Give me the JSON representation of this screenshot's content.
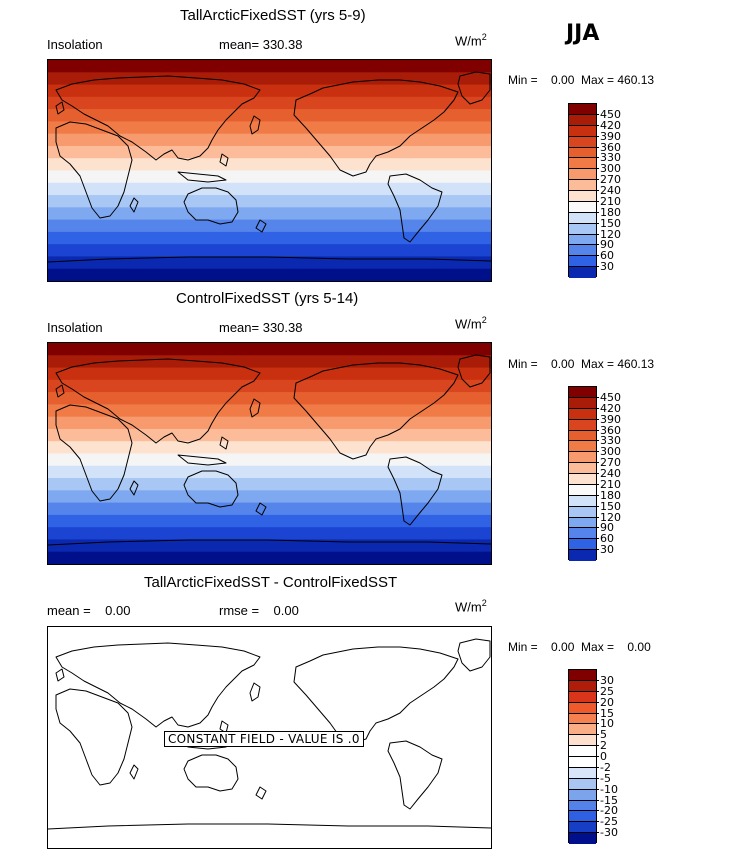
{
  "season": "JJA",
  "unit": {
    "base": "W/m",
    "sup": "2"
  },
  "panels": [
    {
      "title": "TallArcticFixedSST (yrs 5-9)",
      "left_label": "Insolation",
      "mid_label": "mean= 330.38",
      "minmax": "Min =    0.00  Max = 460.13",
      "palette": "warm",
      "levels": [
        "450",
        "420",
        "390",
        "360",
        "330",
        "300",
        "270",
        "240",
        "210",
        "180",
        "150",
        "120",
        "90",
        "60",
        "30"
      ]
    },
    {
      "title": "ControlFixedSST (yrs 5-14)",
      "left_label": "Insolation",
      "mid_label": "mean= 330.38",
      "minmax": "Min =    0.00  Max = 460.13",
      "palette": "warm",
      "levels": [
        "450",
        "420",
        "390",
        "360",
        "330",
        "300",
        "270",
        "240",
        "210",
        "180",
        "150",
        "120",
        "90",
        "60",
        "30"
      ]
    },
    {
      "title": "TallArcticFixedSST - ControlFixedSST",
      "left_label": "mean =    0.00",
      "mid_label": "rmse =    0.00",
      "minmax": "Min =    0.00  Max =    0.00",
      "palette": "diff",
      "constant_label": "CONSTANT FIELD - VALUE IS .0",
      "levels": [
        "30",
        "25",
        "20",
        "15",
        "10",
        "5",
        "2",
        "0",
        "-2",
        "-5",
        "-10",
        "-15",
        "-20",
        "-25",
        "-30"
      ]
    }
  ],
  "colors": {
    "warm": [
      "#800000",
      "#a81c08",
      "#c8300f",
      "#d8451e",
      "#e6602f",
      "#f07b47",
      "#f79a6d",
      "#fcbc9a",
      "#fde2cf",
      "#f5f5f5",
      "#d2e2f8",
      "#a8c7f4",
      "#7ea8ef",
      "#5585ea",
      "#2f62e4",
      "#1a44d1",
      "#0b28b0",
      "#000f8a"
    ],
    "diff_bar": [
      "#800000",
      "#b01c0a",
      "#d8351a",
      "#ef5a2c",
      "#f78050",
      "#fbae86",
      "#fde0cd",
      "#ffffff",
      "#d9e6f9",
      "#a9c6f3",
      "#7ba4ed",
      "#5482e8",
      "#2f5fe3",
      "#173fc5",
      "#00108c"
    ]
  }
}
